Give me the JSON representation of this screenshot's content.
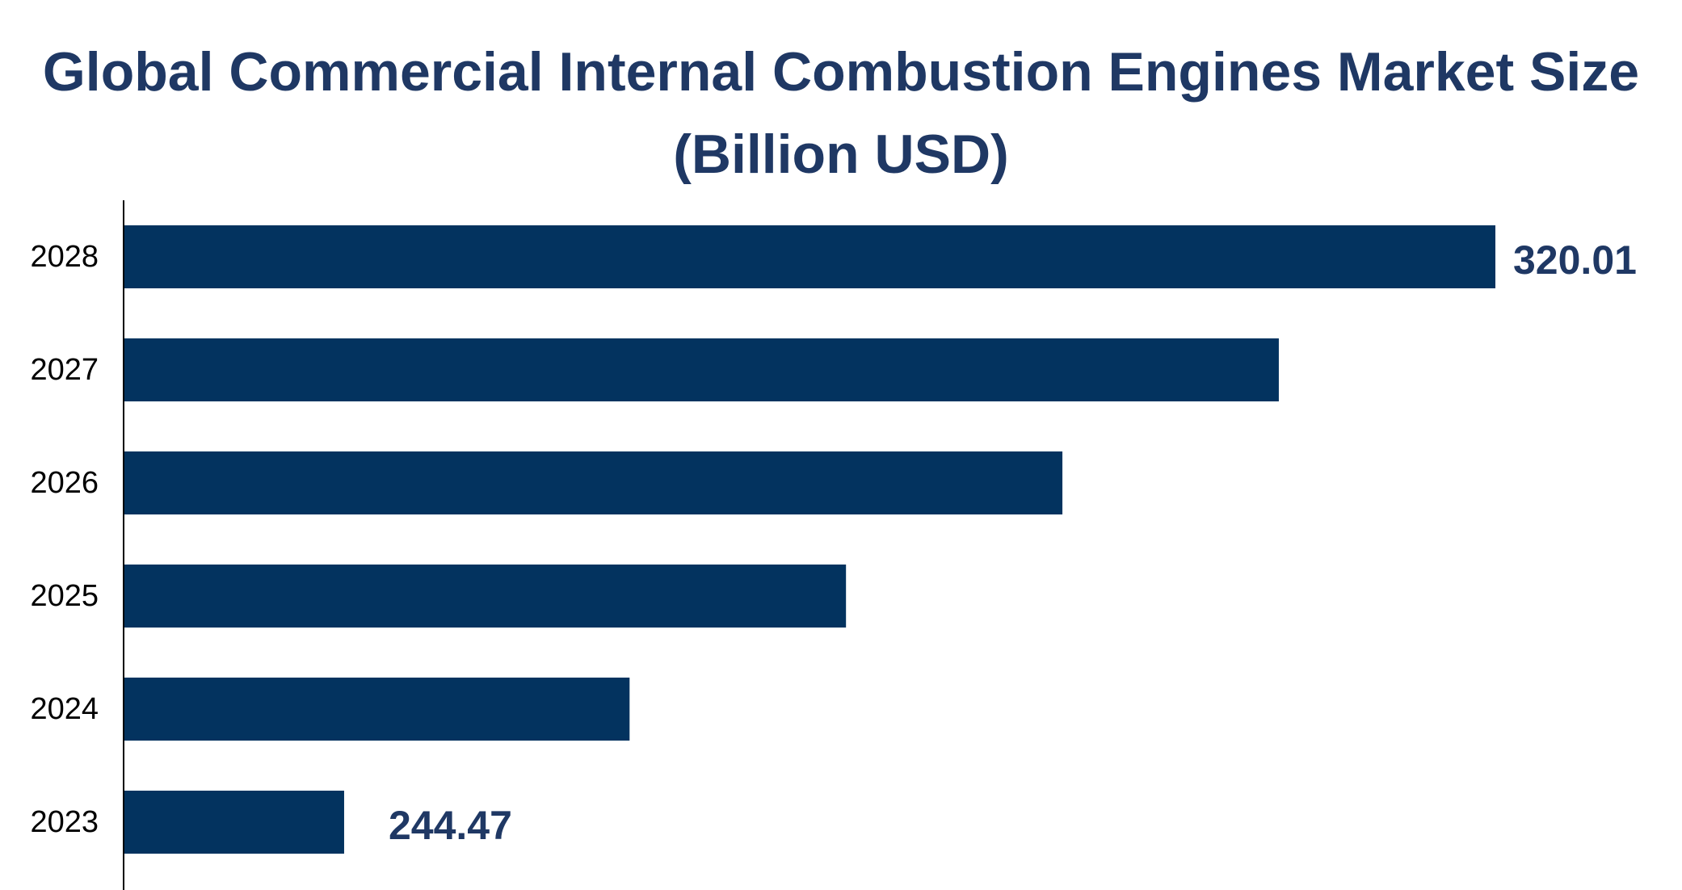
{
  "chart_data": {
    "type": "bar",
    "orientation": "horizontal",
    "title": "Global Commercial Internal Combustion Engines Market Size (Billion USD)",
    "categories": [
      "2028",
      "2027",
      "2026",
      "2025",
      "2024",
      "2023"
    ],
    "values": [
      320.01,
      305.8,
      291.6,
      277.4,
      263.2,
      244.47
    ],
    "data_labels": {
      "2028": "320.01",
      "2023": "244.47"
    },
    "xlim": [
      230,
      320.01
    ],
    "grid": false,
    "legend": "none",
    "colors": {
      "bar": "#03335f",
      "title": "#1f3864",
      "data_label": "#1f3864",
      "axis": "#000000"
    }
  }
}
